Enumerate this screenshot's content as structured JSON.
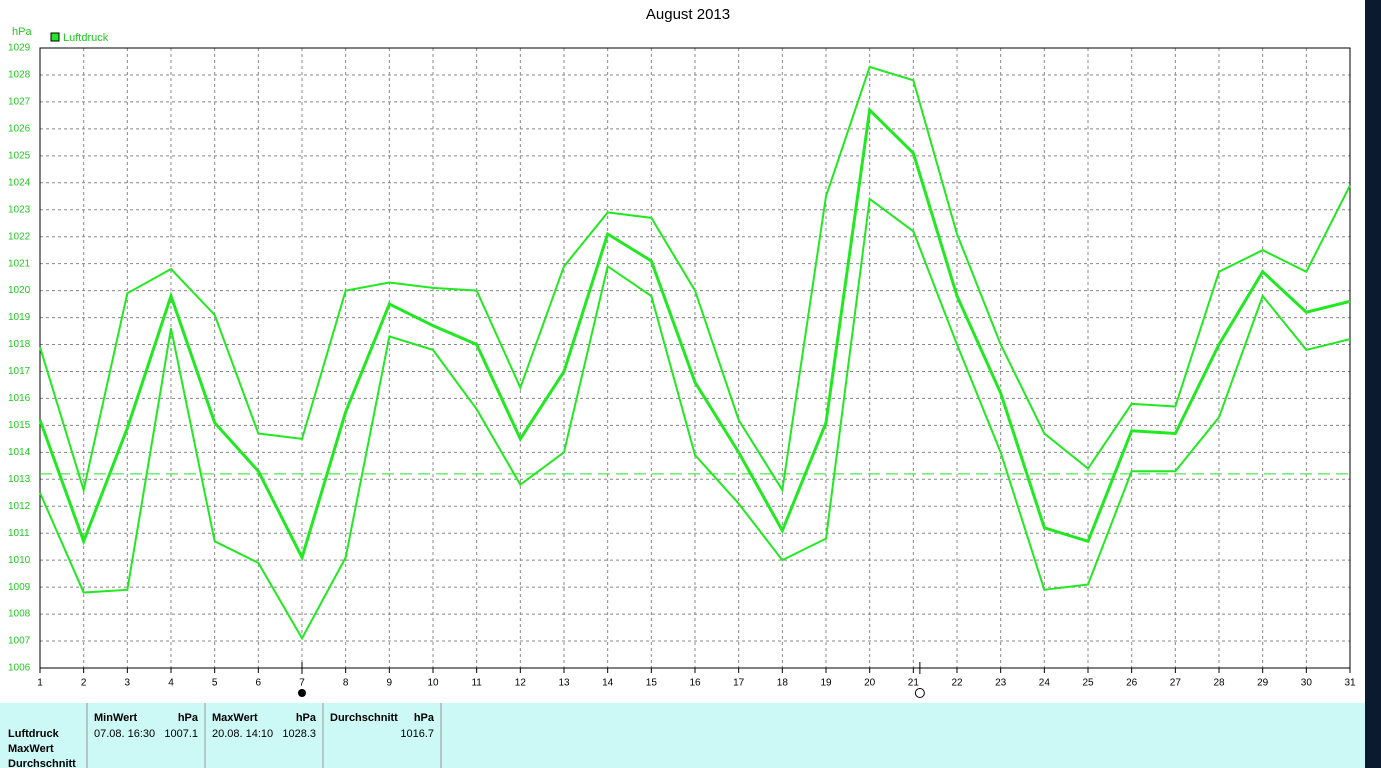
{
  "chart_data": {
    "type": "line",
    "title": "August 2013",
    "y_unit": "hPa",
    "legend_label": "Luftdruck",
    "x": [
      1,
      2,
      3,
      4,
      5,
      6,
      7,
      8,
      9,
      10,
      11,
      12,
      13,
      14,
      15,
      16,
      17,
      18,
      19,
      20,
      21,
      22,
      23,
      24,
      25,
      26,
      27,
      28,
      29,
      30,
      31
    ],
    "xlim": [
      1,
      31
    ],
    "xticks": [
      1,
      2,
      3,
      4,
      5,
      6,
      7,
      8,
      9,
      10,
      11,
      12,
      13,
      14,
      15,
      16,
      17,
      18,
      19,
      20,
      21,
      22,
      23,
      24,
      25,
      26,
      27,
      28,
      29,
      30,
      31
    ],
    "ylim": [
      1006,
      1029
    ],
    "yticks": [
      1006,
      1007,
      1008,
      1009,
      1010,
      1011,
      1012,
      1013,
      1014,
      1015,
      1016,
      1017,
      1018,
      1019,
      1020,
      1021,
      1022,
      1023,
      1024,
      1025,
      1026,
      1027,
      1028,
      1029
    ],
    "grid": true,
    "reference_line": 1013.2,
    "min_marker_x": 7,
    "max_marker_x": 21.15,
    "series": [
      {
        "color": "#22e822",
        "width": 2,
        "values": [
          1017.9,
          1012.6,
          1019.9,
          1020.8,
          1019.1,
          1014.7,
          1014.5,
          1020.0,
          1020.3,
          1020.1,
          1020.0,
          1016.4,
          1020.9,
          1022.9,
          1022.7,
          1020.0,
          1015.2,
          1012.6,
          1023.5,
          1028.3,
          1027.8,
          1022.1,
          1018.0,
          1014.7,
          1013.4,
          1015.8,
          1015.7,
          1020.7,
          1021.5,
          1020.7,
          1023.9
        ]
      },
      {
        "color": "#22e822",
        "width": 3,
        "values": [
          1015.2,
          1010.7,
          1014.9,
          1019.8,
          1015.1,
          1013.3,
          1010.1,
          1015.5,
          1019.5,
          1018.7,
          1018.0,
          1014.5,
          1017.0,
          1022.1,
          1021.1,
          1016.6,
          1014.0,
          1011.1,
          1015.1,
          1026.7,
          1025.1,
          1019.8,
          1016.2,
          1011.2,
          1010.7,
          1014.8,
          1014.7,
          1018.0,
          1020.7,
          1019.2,
          1019.6
        ]
      },
      {
        "color": "#22e822",
        "width": 2,
        "values": [
          1012.5,
          1008.8,
          1008.9,
          1018.6,
          1010.7,
          1009.9,
          1007.1,
          1010.1,
          1018.3,
          1017.8,
          1015.6,
          1012.8,
          1014.0,
          1020.9,
          1019.8,
          1013.9,
          1012.1,
          1010.0,
          1010.8,
          1023.4,
          1022.2,
          1018.0,
          1014.0,
          1008.9,
          1009.1,
          1013.3,
          1013.3,
          1015.3,
          1019.8,
          1017.8,
          1018.2
        ]
      }
    ]
  },
  "table": {
    "row_labels": [
      "Luftdruck",
      "MaxWert",
      "Durchschnitt"
    ],
    "min": {
      "header": "MinWert",
      "unit": "hPa",
      "time": "07.08.  16:30",
      "value": 1007.1
    },
    "max": {
      "header": "MaxWert",
      "unit": "hPa",
      "time": "20.08.  14:10",
      "value": 1028.3
    },
    "avg": {
      "header": "Durchschnitt",
      "unit": "hPa",
      "value": 1016.7
    }
  }
}
